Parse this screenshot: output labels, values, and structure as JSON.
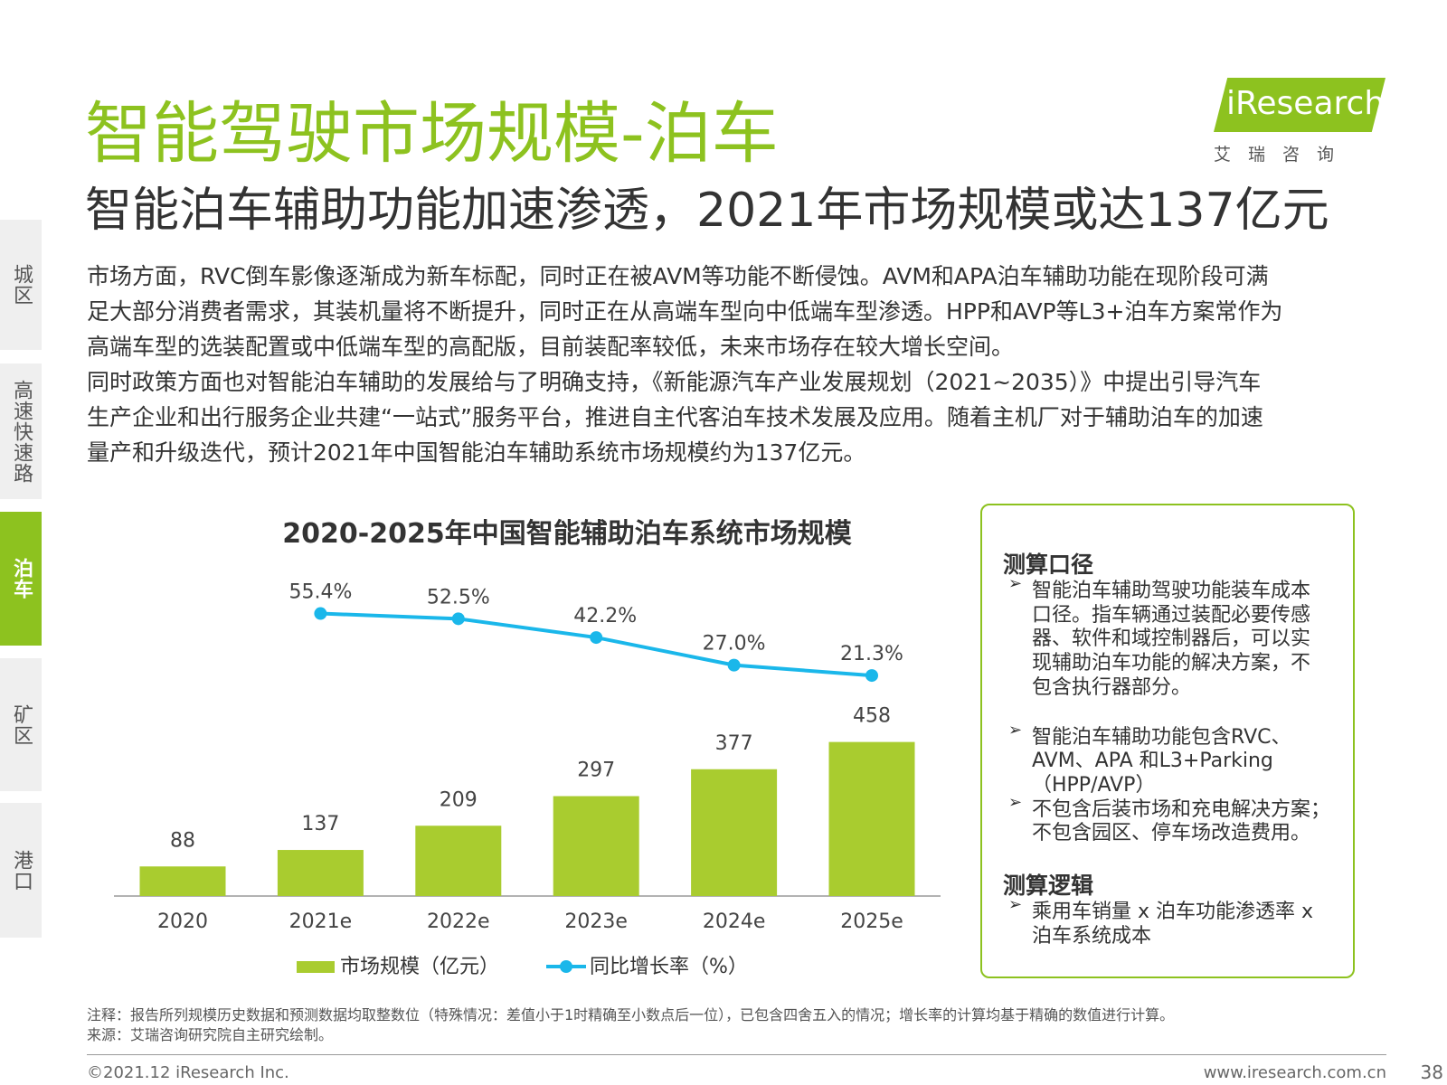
{
  "header": {
    "title": "智能驾驶市场规模-泊车",
    "subtitle": "智能泊车辅助功能加速渗透，2021年市场规模或达137亿元",
    "logo": "iResearch",
    "logo_sub": "艾　瑞　咨　询"
  },
  "tabs": [
    {
      "label": "城区"
    },
    {
      "label": "高速快速路"
    },
    {
      "label": "泊车",
      "active": true
    },
    {
      "label": "矿区"
    },
    {
      "label": "港口"
    }
  ],
  "body": {
    "lines": [
      "市场方面，RVC倒车影像逐渐成为新车标配，同时正在被AVM等功能不断侵蚀。AVM和APA泊车辅助功能在现阶段可满",
      "足大部分消费者需求，其装机量将不断提升，同时正在从高端车型向中低端车型渗透。HPP和AVP等L3+泊车方案常作为",
      "高端车型的选装配置或中低端车型的高配版，目前装配率较低，未来市场存在较大增长空间。",
      "同时政策方面也对智能泊车辅助的发展给与了明确支持，《新能源汽车产业发展规划（2021~2035）》中提出引导汽车",
      "生产企业和出行服务企业共建“一站式”服务平台，推进自主代客泊车技术发展及应用。随着主机厂对于辅助泊车的加速",
      "量产和升级迭代，预计2021年中国智能泊车辅助系统市场规模约为137亿元。"
    ]
  },
  "chart_data": {
    "type": "bar",
    "title": "2020-2025年中国智能辅助泊车系统市场规模",
    "categories": [
      "2020",
      "2021e",
      "2022e",
      "2023e",
      "2024e",
      "2025e"
    ],
    "series": [
      {
        "name": "市场规模（亿元）",
        "type": "bar",
        "color": "#a9cc2f",
        "values": [
          88,
          137,
          209,
          297,
          377,
          458
        ]
      },
      {
        "name": "同比增长率（%）",
        "type": "line",
        "axis": "y2",
        "color": "#1ab7ea",
        "values": [
          null,
          55.4,
          52.5,
          42.2,
          27,
          21.3
        ],
        "value_labels": [
          null,
          "55.4%",
          "52.5%",
          "42.2%",
          "27.0%",
          "21.3%"
        ]
      }
    ],
    "ylim": [
      0,
      1000
    ],
    "y2lim": [
      -100,
      85
    ],
    "grid": false
  },
  "box": {
    "sections": [
      {
        "heading": "测算口径",
        "items": [
          {
            "lines": [
              "智能泊车辅助驾驶功能装车成本",
              "口径。指车辆通过装配必要传感",
              "器、软件和域控制器后，可以实",
              "现辅助泊车功能的解决方案，不",
              "包含执行器部分。"
            ]
          },
          {
            "lines": [
              "智能泊车辅助功能包含RVC、",
              "AVM、APA 和L3+Parking",
              "（HPP/AVP）"
            ]
          },
          {
            "lines": [
              "不包含后装市场和充电解决方案；",
              "不包含园区、停车场改造费用。"
            ]
          }
        ]
      },
      {
        "heading": "测算逻辑",
        "items": [
          {
            "lines": [
              "乘用车销量 x 泊车功能渗透率 x",
              "泊车系统成本"
            ]
          }
        ]
      }
    ]
  },
  "notes": [
    "注释：报告所列规模历史数据和预测数据均取整数位（特殊情况：差值小于1时精确至小数点后一位），已包含四舍五入的情况；增长率的计算均基于精确的数值进行计算。",
    "来源：艾瑞咨询研究院自主研究绘制。"
  ],
  "footer": {
    "copyright": "©2021.12 iResearch Inc.",
    "website": "www.iresearch.com.cn",
    "page": "38"
  }
}
